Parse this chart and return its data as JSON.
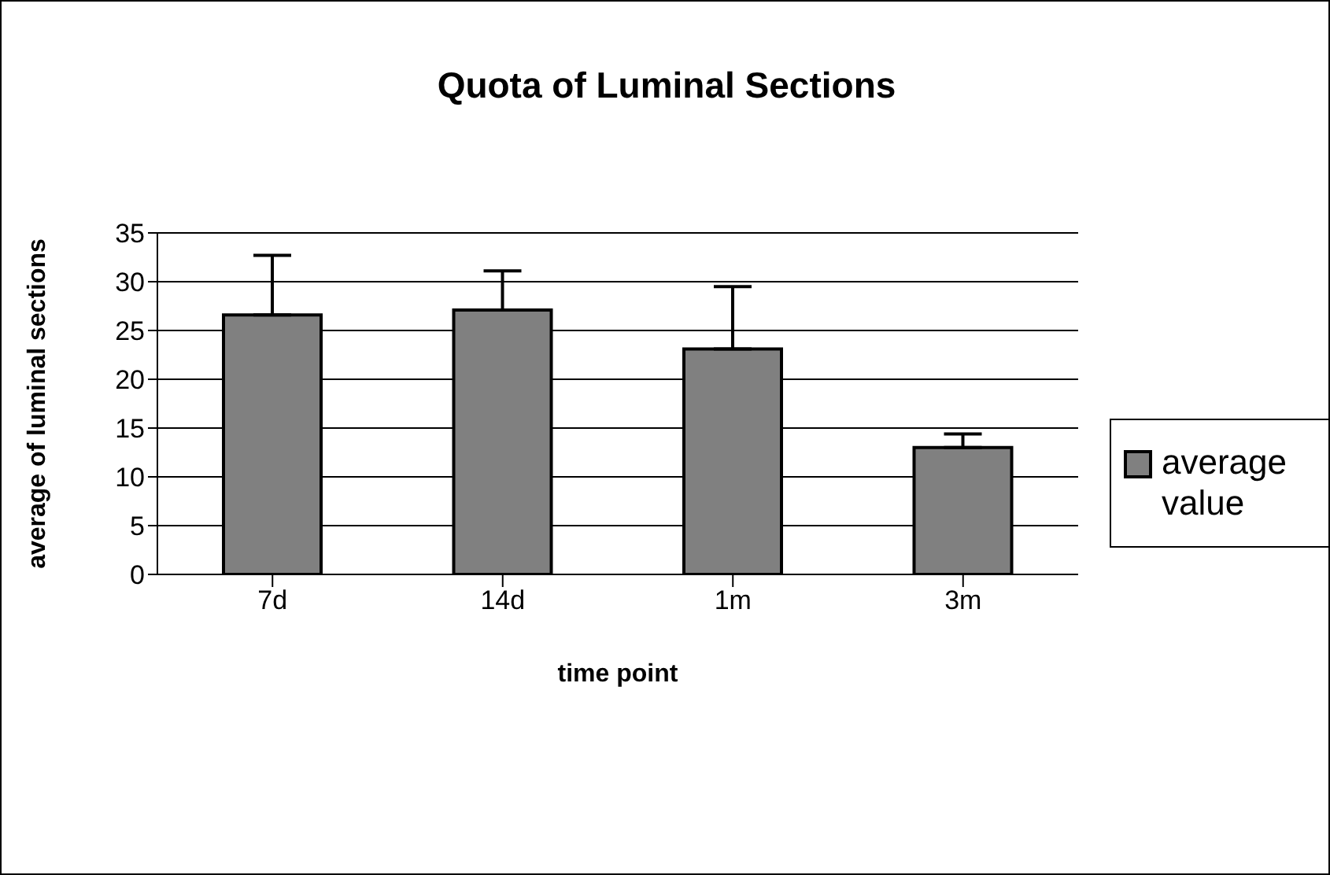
{
  "chart_data": {
    "type": "bar",
    "title": "Quota of Luminal Sections",
    "xlabel": "time point",
    "ylabel": "average of luminal sections",
    "categories": [
      "7d",
      "14d",
      "1m",
      "3m"
    ],
    "series": [
      {
        "name": "average value",
        "color": "#808080",
        "values": [
          26.6,
          27.1,
          23.1,
          13.0
        ],
        "errors": [
          [
            26.6,
            32.7
          ],
          [
            27.1,
            31.1
          ],
          [
            23.1,
            29.5
          ],
          [
            13.0,
            14.4
          ]
        ]
      }
    ],
    "ylim": [
      0,
      35
    ],
    "yticks": [
      0,
      5,
      10,
      15,
      20,
      25,
      30,
      35
    ],
    "grid": "y",
    "legend": "right"
  }
}
